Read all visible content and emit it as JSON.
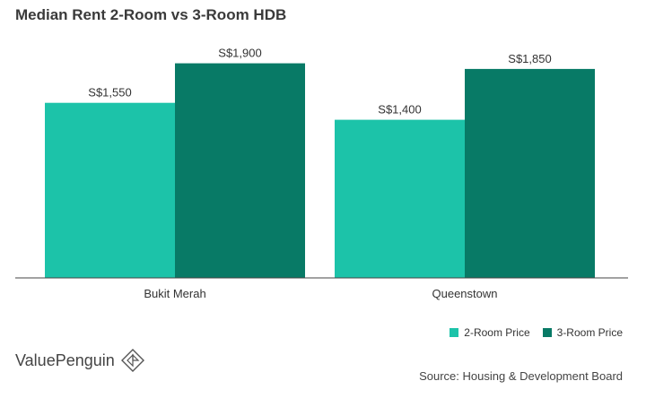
{
  "chart_data": {
    "type": "bar",
    "title": "Median Rent 2-Room vs 3-Room HDB",
    "categories": [
      "Bukit Merah",
      "Queenstown"
    ],
    "series": [
      {
        "name": "2-Room Price",
        "values": [
          1550,
          1400
        ],
        "labels": [
          "S$1,550",
          "S$1,400"
        ],
        "color": "#1cc3a9"
      },
      {
        "name": "3-Room Price",
        "values": [
          1900,
          1850
        ],
        "labels": [
          "S$1,900",
          "S$1,850"
        ],
        "color": "#087a66"
      }
    ],
    "ylim": [
      0,
      2000
    ],
    "grid": false,
    "legend": "bottom-right"
  },
  "footer": {
    "brand": "ValuePenguin",
    "source": "Source: Housing & Development Board"
  }
}
